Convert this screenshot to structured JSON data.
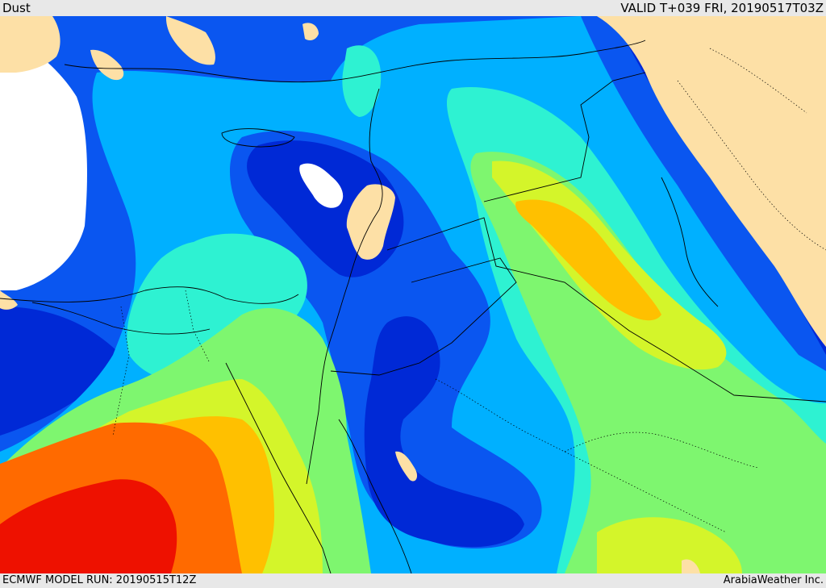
{
  "header": {
    "title": "Dust",
    "valid": "VALID T+039 FRI, 20190517T03Z"
  },
  "footer": {
    "model_run": "ECMWF MODEL RUN: 20190515T12Z",
    "credit": "ArabiaWeather Inc."
  },
  "colors": {
    "land": "#fde0a6",
    "no_data": "#ffffff",
    "level_1": "#0029d6",
    "level_2": "#0a56f0",
    "level_3": "#00b0ff",
    "level_4": "#2ef2d2",
    "level_5": "#7ef66f",
    "level_6": "#d4f52a",
    "level_7": "#ffc000",
    "level_8": "#ff6a00",
    "level_9": "#ee1100",
    "border": "#000000"
  }
}
